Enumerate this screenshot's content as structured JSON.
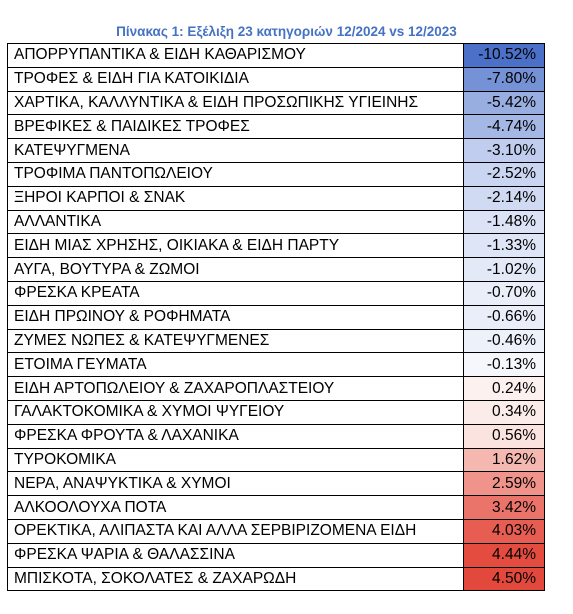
{
  "title": "Πίνακας 1: Εξέλιξη 23 κατηγοριών 12/2024 vs 12/2023",
  "rows": [
    {
      "name": "ΑΠΟΡΡΥΠΑΝΤΙΚΑ & ΕΙΔΗ ΚΑΘΑΡΙΣΜΟΥ",
      "value": "-10.52%",
      "color": "#4a70c8"
    },
    {
      "name": "ΤΡΟΦΕΣ & ΕΙΔΗ ΓΙΑ ΚΑΤΟΙΚΙΔΙΑ",
      "value": "-7.80%",
      "color": "#7592d6"
    },
    {
      "name": "ΧΑΡΤΙΚΑ, ΚΑΛΛΥΝΤΙΚΑ & ΕΙΔΗ ΠΡΟΣΩΠΙΚΗΣ ΥΓΙΕΙΝΗΣ",
      "value": "-5.42%",
      "color": "#98aee1"
    },
    {
      "name": "ΒΡΕΦΙΚΕΣ & ΠΑΙΔΙΚΕΣ ΤΡΟΦΕΣ",
      "value": "-4.74%",
      "color": "#a4b7e5"
    },
    {
      "name": "ΚΑΤΕΨΥΓΜΕΝΑ",
      "value": "-3.10%",
      "color": "#c0cdee"
    },
    {
      "name": "ΤΡΟΦΙΜΑ ΠΑΝΤΟΠΩΛΕΙΟΥ",
      "value": "-2.52%",
      "color": "#cad5f1"
    },
    {
      "name": "ΞΗΡΟΙ ΚΑΡΠΟΙ & ΣΝΑΚ",
      "value": "-2.14%",
      "color": "#d0daf2"
    },
    {
      "name": "ΑΛΛΑΝΤΙΚΑ",
      "value": "-1.48%",
      "color": "#dce3f6"
    },
    {
      "name": "ΕΙΔΗ ΜΙΑΣ ΧΡΗΣΗΣ, ΟΙΚΙΑΚΑ & ΕΙΔΗ ΠΑΡΤΥ",
      "value": "-1.33%",
      "color": "#dee5f6"
    },
    {
      "name": "ΑΥΓΑ, ΒΟΥΤΥΡΑ & ΖΩΜΟΙ",
      "value": "-1.02%",
      "color": "#e4e9f8"
    },
    {
      "name": "ΦΡΕΣΚΑ ΚΡΕΑΤΑ",
      "value": "-0.70%",
      "color": "#e9eef9"
    },
    {
      "name": "ΕΙΔΗ ΠΡΩΙΝΟΥ & ΡΟΦΗΜΑΤΑ",
      "value": "-0.66%",
      "color": "#eaeef9"
    },
    {
      "name": "ΖΥΜΕΣ ΝΩΠΕΣ & ΚΑΤΕΨΥΓΜΕΝΕΣ",
      "value": "-0.46%",
      "color": "#edf1fa"
    },
    {
      "name": "ΕΤΟΙΜΑ ΓΕΥΜΑΤΑ",
      "value": "-0.13%",
      "color": "#f5f7fc"
    },
    {
      "name": "ΕΙΔΗ ΑΡΤΟΠΩΛΕΙΟΥ & ΖΑΧΑΡΟΠΛΑΣΤΕΙΟΥ",
      "value": "0.24%",
      "color": "#fdf1f0"
    },
    {
      "name": "ΓΑΛΑΚΤΟΚΟΜΙΚΑ & ΧΥΜΟΙ ΨΥΓΕΙΟΥ",
      "value": "0.34%",
      "color": "#fcece9"
    },
    {
      "name": "ΦΡΕΣΚΑ ΦΡΟΥΤΑ & ΛΑΧΑΝΙΚΑ",
      "value": "0.56%",
      "color": "#fbe3df"
    },
    {
      "name": "ΤΥΡΟΚΟΜΙΚΑ",
      "value": "1.62%",
      "color": "#f5b8b1"
    },
    {
      "name": "ΝΕΡΑ, ΑΝΑΨΥΚΤΙΚΑ & ΧΥΜΟΙ",
      "value": "2.59%",
      "color": "#f0938a"
    },
    {
      "name": "ΑΛΚΟΟΛΟΥΧΑ ΠΟΤΑ",
      "value": "3.42%",
      "color": "#eb746a"
    },
    {
      "name": "ΟΡΕΚΤΙΚΑ, ΑΛΙΠΑΣΤΑ ΚΑΙ ΑΛΛΑ ΣΕΡΒΙΡΙΖΟΜΕΝΑ ΕΙΔΗ",
      "value": "4.03%",
      "color": "#e75d52"
    },
    {
      "name": "ΦΡΕΣΚΑ ΨΑΡΙΑ & ΘΑΛΑΣΣΙΝΑ",
      "value": "4.44%",
      "color": "#e44c40"
    },
    {
      "name": "ΜΠΙΣΚΟΤΑ, ΣΟΚΟΛΑΤΕΣ & ΖΑΧΑΡΩΔΗ",
      "value": "4.50%",
      "color": "#e3483c"
    }
  ]
}
